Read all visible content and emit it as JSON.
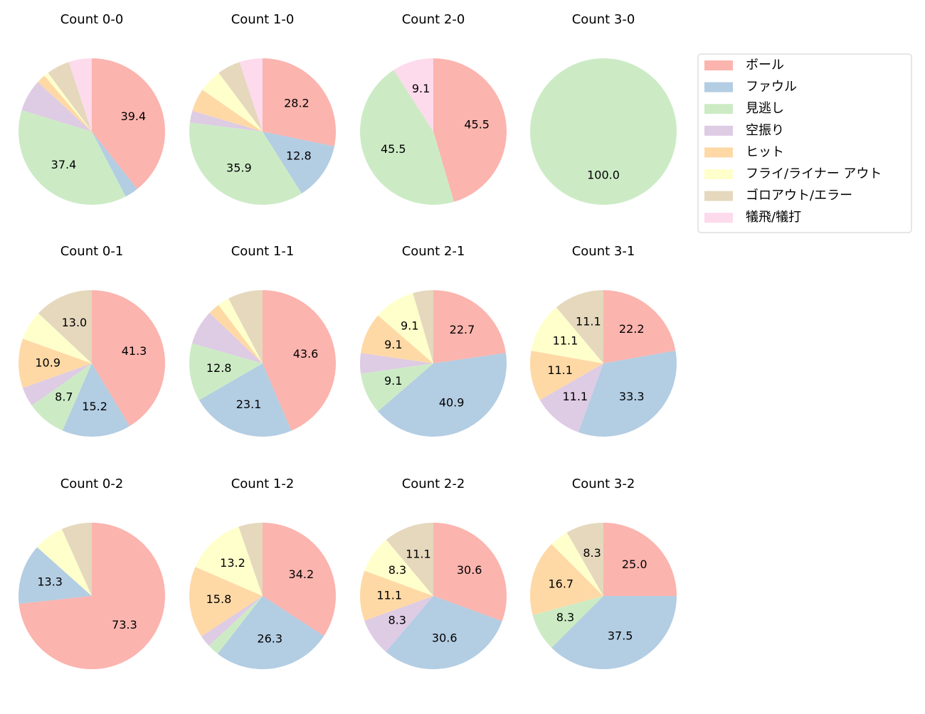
{
  "chart_data": [
    {
      "type": "pie",
      "title": "Count 0-0",
      "values": [
        39.4,
        3.0,
        37.4,
        7.1,
        2.0,
        1.0,
        5.1,
        5.1
      ],
      "value_labels": [
        "39.4",
        null,
        "37.4",
        null,
        null,
        null,
        null,
        null
      ]
    },
    {
      "type": "pie",
      "title": "Count 1-0",
      "values": [
        28.2,
        12.8,
        35.9,
        2.6,
        5.1,
        5.1,
        5.1,
        5.1
      ],
      "value_labels": [
        "28.2",
        "12.8",
        "35.9",
        null,
        null,
        null,
        null,
        null
      ]
    },
    {
      "type": "pie",
      "title": "Count 2-0",
      "values": [
        45.5,
        0,
        45.5,
        0,
        0,
        0,
        0,
        9.1
      ],
      "value_labels": [
        "45.5",
        null,
        "45.5",
        null,
        null,
        null,
        null,
        "9.1"
      ]
    },
    {
      "type": "pie",
      "title": "Count 3-0",
      "values": [
        0,
        0,
        100,
        0,
        0,
        0,
        0,
        0
      ],
      "value_labels": [
        null,
        null,
        "100.0",
        null,
        null,
        null,
        null,
        null
      ]
    },
    {
      "type": "pie",
      "title": "Count 0-1",
      "values": [
        41.3,
        15.2,
        8.7,
        4.3,
        10.9,
        6.5,
        13.0,
        0
      ],
      "value_labels": [
        "41.3",
        "15.2",
        "8.7",
        null,
        "10.9",
        null,
        "13.0",
        null
      ]
    },
    {
      "type": "pie",
      "title": "Count 1-1",
      "values": [
        43.6,
        23.1,
        12.8,
        7.7,
        2.6,
        2.6,
        7.7,
        0
      ],
      "value_labels": [
        "43.6",
        "23.1",
        "12.8",
        null,
        null,
        null,
        null,
        null
      ]
    },
    {
      "type": "pie",
      "title": "Count 2-1",
      "values": [
        22.7,
        40.9,
        9.1,
        4.5,
        9.1,
        9.1,
        4.5,
        0
      ],
      "value_labels": [
        "22.7",
        "40.9",
        "9.1",
        null,
        "9.1",
        "9.1",
        null,
        null
      ]
    },
    {
      "type": "pie",
      "title": "Count 3-1",
      "values": [
        22.2,
        33.3,
        0,
        11.1,
        11.1,
        11.1,
        11.1,
        0
      ],
      "value_labels": [
        "22.2",
        "33.3",
        null,
        "11.1",
        "11.1",
        "11.1",
        "11.1",
        null
      ]
    },
    {
      "type": "pie",
      "title": "Count 0-2",
      "values": [
        73.3,
        13.3,
        0,
        0,
        0,
        6.7,
        6.7,
        0
      ],
      "value_labels": [
        "73.3",
        "13.3",
        null,
        null,
        null,
        null,
        null,
        null
      ]
    },
    {
      "type": "pie",
      "title": "Count 1-2",
      "values": [
        34.2,
        26.3,
        2.6,
        2.6,
        15.8,
        13.2,
        5.3,
        0
      ],
      "value_labels": [
        "34.2",
        "26.3",
        null,
        null,
        "15.8",
        "13.2",
        null,
        null
      ]
    },
    {
      "type": "pie",
      "title": "Count 2-2",
      "values": [
        30.6,
        30.6,
        0,
        8.3,
        11.1,
        8.3,
        11.1,
        0
      ],
      "value_labels": [
        "30.6",
        "30.6",
        null,
        "8.3",
        "11.1",
        "8.3",
        "11.1",
        null
      ]
    },
    {
      "type": "pie",
      "title": "Count 3-2",
      "values": [
        25.0,
        37.5,
        8.3,
        0,
        16.7,
        4.2,
        8.3,
        0
      ],
      "value_labels": [
        "25.0",
        "37.5",
        "8.3",
        null,
        "16.7",
        null,
        "8.3",
        null
      ]
    }
  ],
  "legend": {
    "labels": [
      "ボール",
      "ファウル",
      "見逃し",
      "空振り",
      "ヒット",
      "フライ/ライナー アウト",
      "ゴロアウト/エラー",
      "犠飛/犠打"
    ],
    "colors": [
      "#fbb4ae",
      "#b3cde3",
      "#ccebc5",
      "#decbe4",
      "#fed9a6",
      "#ffffcc",
      "#e5d8bd",
      "#fddaec"
    ]
  }
}
